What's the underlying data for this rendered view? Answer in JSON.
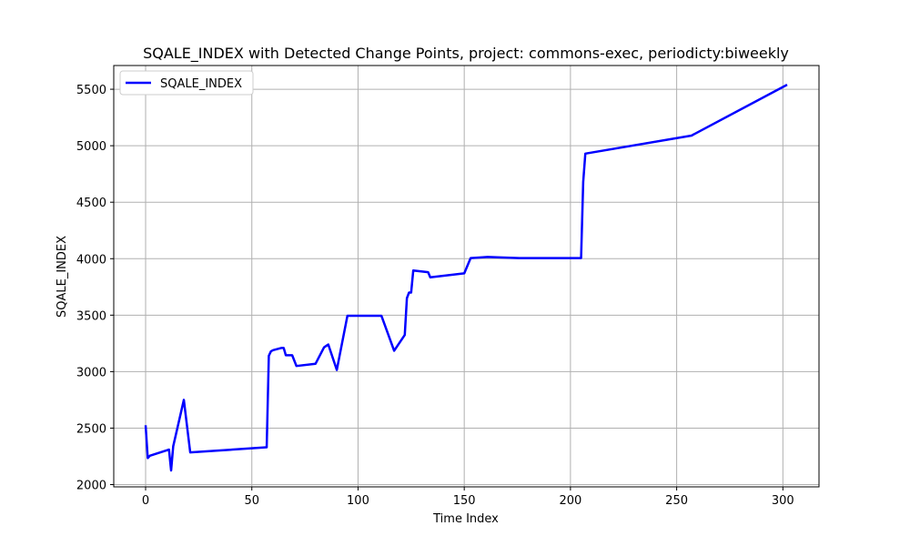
{
  "chart_data": {
    "type": "line",
    "title": "SQALE_INDEX with Detected Change Points, project: commons-exec, periodicty:biweekly",
    "xlabel": "Time Index",
    "ylabel": "SQALE_INDEX",
    "xlim": [
      -15,
      317
    ],
    "ylim": [
      1980,
      5710
    ],
    "xticks": [
      0,
      50,
      100,
      150,
      200,
      250,
      300
    ],
    "yticks": [
      2000,
      2500,
      3000,
      3500,
      4000,
      4500,
      5000,
      5500
    ],
    "grid": true,
    "legend_position": "top-left",
    "series": [
      {
        "name": "SQALE_INDEX",
        "color": "#0000ff",
        "x": [
          0,
          1,
          2,
          11,
          12,
          13,
          18,
          21,
          57,
          58,
          59,
          60,
          64,
          65,
          66,
          69,
          71,
          80,
          84,
          86,
          90,
          95,
          111,
          117,
          122,
          123,
          124,
          125,
          126,
          133,
          134,
          150,
          153,
          161,
          176,
          205,
          206,
          207,
          257,
          302
        ],
        "y": [
          2525,
          2235,
          2255,
          2310,
          2125,
          2340,
          2750,
          2285,
          2330,
          3140,
          3180,
          3190,
          3210,
          3210,
          3145,
          3145,
          3050,
          3070,
          3215,
          3240,
          3015,
          3495,
          3495,
          3185,
          3325,
          3650,
          3700,
          3700,
          3895,
          3880,
          3835,
          3870,
          4005,
          4015,
          4005,
          4005,
          4680,
          4930,
          5090,
          5540
        ]
      }
    ]
  }
}
